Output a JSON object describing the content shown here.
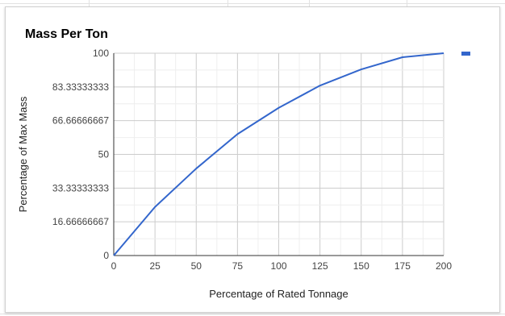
{
  "chart_data": {
    "type": "line",
    "title": "Mass Per Ton",
    "xlabel": "Percentage of Rated Tonnage",
    "ylabel": "Percentage of Max Mass",
    "x": [
      0,
      25,
      50,
      75,
      100,
      125,
      150,
      175,
      200
    ],
    "series": [
      {
        "values": [
          0,
          24,
          43,
          60,
          73,
          84,
          92,
          98,
          100
        ],
        "color": "#3366cc"
      }
    ],
    "xlim": [
      0,
      200
    ],
    "ylim": [
      0,
      100
    ],
    "xticks": [
      "0",
      "25",
      "50",
      "75",
      "100",
      "125",
      "150",
      "175",
      "200"
    ],
    "yticks": [
      {
        "value": 0,
        "label": "0"
      },
      {
        "value": 16.66666667,
        "label": "16.66666667"
      },
      {
        "value": 33.33333333,
        "label": "33.33333333"
      },
      {
        "value": 50,
        "label": "50"
      },
      {
        "value": 66.66666667,
        "label": "66.66666667"
      },
      {
        "value": 83.33333333,
        "label": "83.33333333"
      },
      {
        "value": 100,
        "label": "100"
      }
    ],
    "grid": true,
    "legend": "right"
  }
}
